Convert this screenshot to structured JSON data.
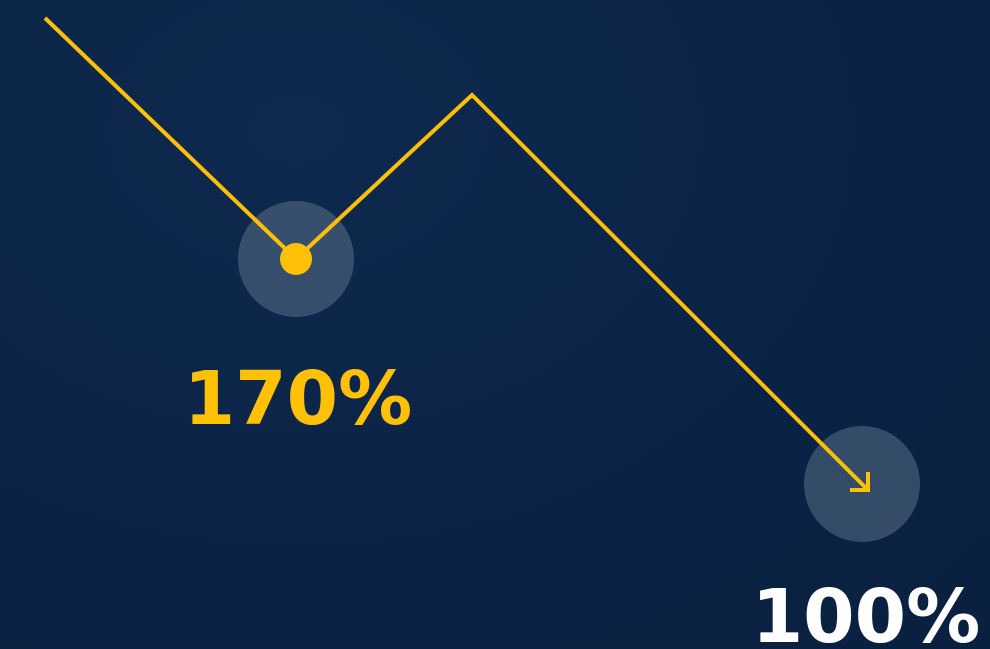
{
  "chart_data": {
    "type": "line",
    "points": [
      {
        "x": 0,
        "y": 0
      },
      {
        "x": 1,
        "y": 170
      },
      {
        "x": 2,
        "y": 0
      },
      {
        "x": 3,
        "y": 100
      }
    ],
    "annotations": [
      {
        "label": "170%",
        "point_index": 1,
        "color": "#ffc107",
        "marker": "dot"
      },
      {
        "label": "100%",
        "point_index": 3,
        "color": "#ffffff",
        "marker": "arrow"
      }
    ],
    "line_color": "#ffc107",
    "highlight_color": "#5a6f89",
    "grid": false,
    "legend": "none"
  }
}
